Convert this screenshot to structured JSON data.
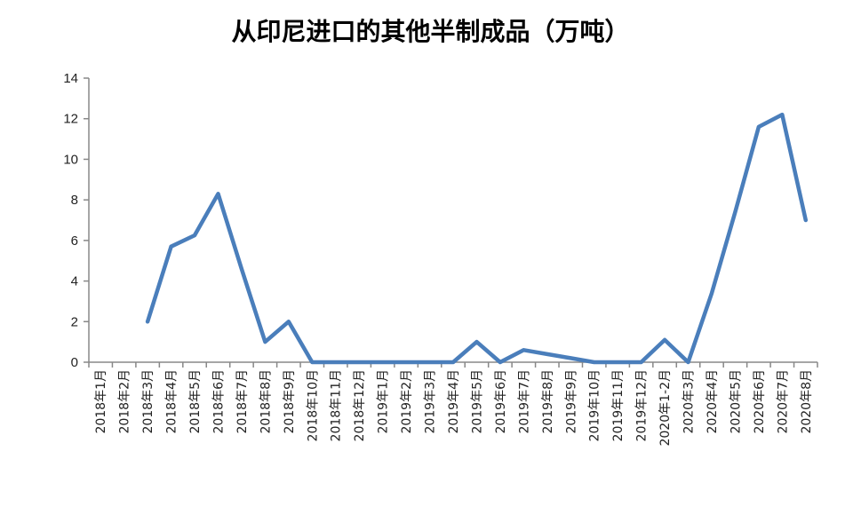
{
  "chart_data": {
    "type": "line",
    "title": "从印尼进口的其他半制成品（万吨）",
    "xlabel": "",
    "ylabel": "",
    "ylim": [
      0,
      14
    ],
    "yticks": [
      "0",
      "2",
      "4",
      "6",
      "8",
      "10",
      "12",
      "14"
    ],
    "grid": false,
    "legend": "none",
    "categories": [
      "2018年1月",
      "2018年2月",
      "2018年3月",
      "2018年4月",
      "2018年5月",
      "2018年6月",
      "2018年7月",
      "2018年8月",
      "2018年9月",
      "2018年10月",
      "2018年11月",
      "2018年12月",
      "2019年1月",
      "2019年2月",
      "2019年3月",
      "2019年4月",
      "2019年5月",
      "2019年6月",
      "2019年7月",
      "2019年8月",
      "2019年9月",
      "2019年10月",
      "2019年11月",
      "2019年12月",
      "2020年1-2月",
      "2020年3月",
      "2020年4月",
      "2020年5月",
      "2020年6月",
      "2020年7月",
      "2020年8月"
    ],
    "series": [
      {
        "color": "#4a7ebb",
        "values": [
          null,
          null,
          2.0,
          5.7,
          6.25,
          8.3,
          4.6,
          1.0,
          2.0,
          0,
          0,
          0,
          0,
          0,
          0,
          0,
          1.0,
          0,
          0.6,
          0.4,
          0.2,
          0,
          0,
          0,
          1.1,
          0,
          3.4,
          7.4,
          11.6,
          12.2,
          7.0
        ]
      }
    ]
  }
}
